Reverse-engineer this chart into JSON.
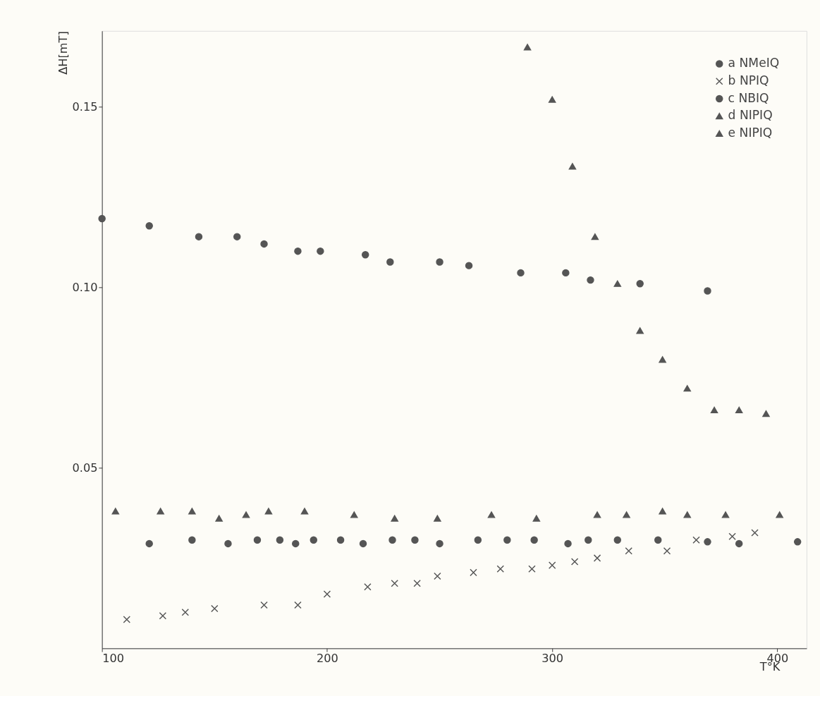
{
  "chart_data": {
    "type": "scatter",
    "xlabel": "T°K",
    "ylabel": "ΔH[mT]",
    "xlim": [
      100,
      413
    ],
    "ylim": [
      0,
      0.171
    ],
    "xticks": [
      100,
      200,
      300,
      400
    ],
    "yticks": [
      0.05,
      {
        "value": 0.1,
        "label": "0.10"
      },
      0.15
    ],
    "grid": false,
    "legend": "top right",
    "series": [
      {
        "name": "a NMeIQ",
        "color": "#555555",
        "marker": "circle",
        "x": [
          121,
          140,
          156,
          169,
          179,
          186,
          194,
          206,
          216,
          229,
          239,
          250,
          267,
          280,
          292,
          307,
          316,
          329,
          347,
          369,
          383,
          409
        ],
        "values": [
          0.029,
          0.03,
          0.029,
          0.03,
          0.03,
          0.029,
          0.03,
          0.03,
          0.029,
          0.03,
          0.03,
          0.029,
          0.03,
          0.03,
          0.03,
          0.029,
          0.03,
          0.03,
          0.03,
          0.0295,
          0.029,
          0.0295
        ]
      },
      {
        "name": "b NPIQ",
        "color": "#555555",
        "marker": "cross",
        "x": [
          111,
          127,
          137,
          150,
          172,
          187,
          200,
          218,
          230,
          240,
          249,
          265,
          277,
          291,
          300,
          310,
          320,
          334,
          351,
          364,
          380,
          390
        ],
        "values": [
          0.008,
          0.009,
          0.01,
          0.011,
          0.012,
          0.012,
          0.015,
          0.017,
          0.018,
          0.018,
          0.02,
          0.021,
          0.022,
          0.022,
          0.023,
          0.024,
          0.025,
          0.027,
          0.027,
          0.03,
          0.031,
          0.032
        ]
      },
      {
        "name": "c NBIQ",
        "color": "#555555",
        "marker": "circle",
        "x": [
          100,
          121,
          143,
          160,
          172,
          187,
          197,
          217,
          228,
          250,
          263,
          286,
          306,
          317,
          339,
          369
        ],
        "values": [
          0.119,
          0.117,
          0.114,
          0.114,
          0.112,
          0.11,
          0.11,
          0.109,
          0.107,
          0.107,
          0.106,
          0.104,
          0.104,
          0.102,
          0.101,
          0.099
        ]
      },
      {
        "name": "d NIPIQ",
        "color": "#555555",
        "marker": "triangle",
        "x": [
          106,
          126,
          140,
          152,
          164,
          174,
          190,
          212,
          230,
          249,
          273,
          293,
          320,
          333,
          349,
          360,
          377,
          401
        ],
        "values": [
          0.038,
          0.038,
          0.038,
          0.036,
          0.037,
          0.038,
          0.038,
          0.037,
          0.036,
          0.036,
          0.037,
          0.036,
          0.037,
          0.037,
          0.038,
          0.037,
          0.037,
          0.037
        ]
      },
      {
        "name": "e NIPIQ",
        "color": "#555555",
        "marker": "triangle",
        "x": [
          289,
          300,
          309,
          319,
          329,
          339,
          349,
          360,
          372,
          383,
          395
        ],
        "values": [
          0.1665,
          0.152,
          0.1335,
          0.114,
          0.101,
          0.088,
          0.08,
          0.072,
          0.066,
          0.066,
          0.065
        ]
      }
    ]
  }
}
